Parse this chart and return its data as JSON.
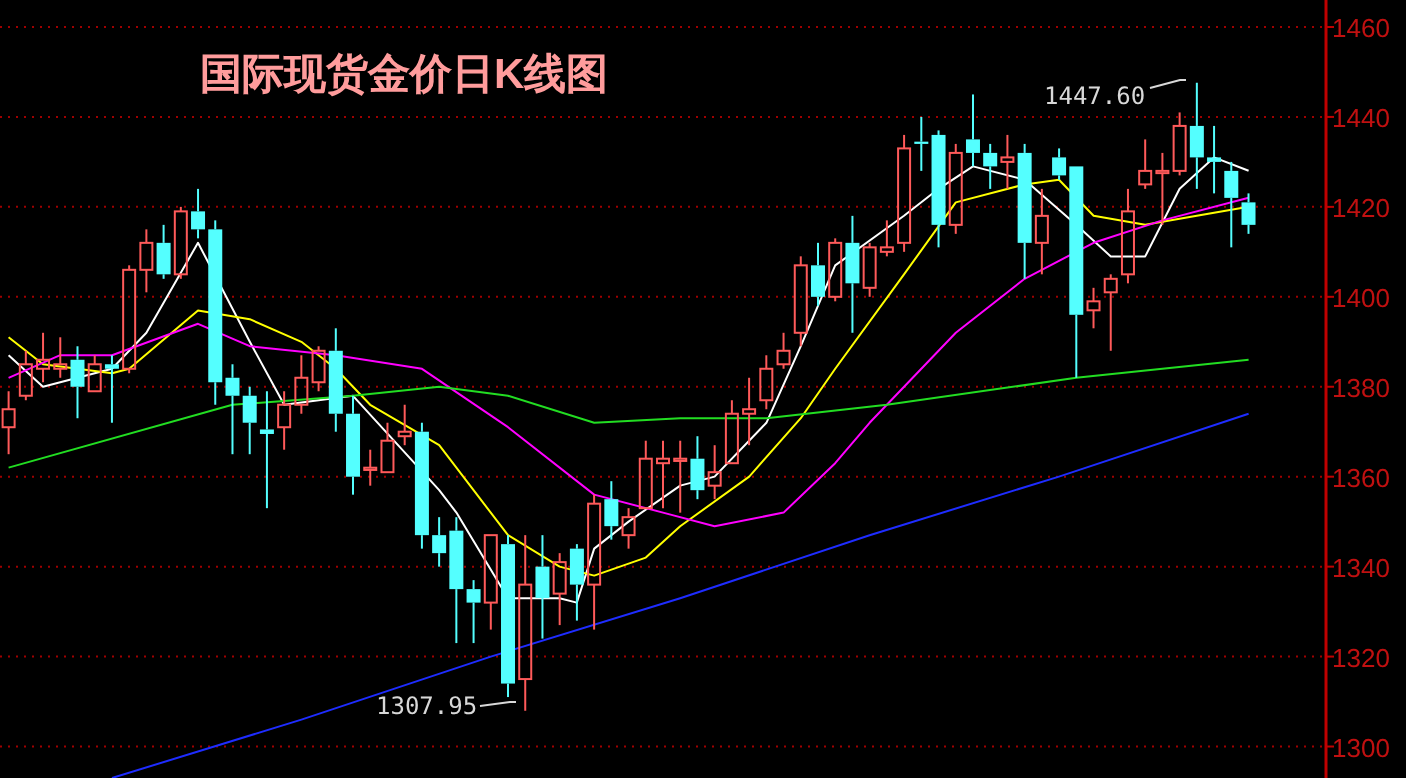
{
  "chart_data": {
    "type": "candlestick",
    "title": "国际现货金价日K线图",
    "categories": [
      null,
      null,
      null,
      null,
      null,
      null,
      null,
      null,
      null,
      null,
      null,
      null,
      null,
      null,
      null,
      null,
      null,
      null,
      null,
      null,
      null,
      null,
      null,
      null,
      null,
      null,
      null,
      null,
      null,
      null,
      null,
      null,
      null,
      null,
      null,
      null,
      null,
      null,
      null,
      null,
      null,
      null,
      null,
      null,
      null,
      null,
      null,
      null,
      null,
      null,
      null,
      null,
      null,
      null,
      null,
      null,
      null,
      null,
      null,
      null,
      null,
      null,
      null,
      null,
      null,
      null,
      null,
      null,
      null,
      null,
      null,
      null,
      null,
      null,
      null,
      null,
      null
    ],
    "ohlc": [
      [
        1371,
        1379,
        1365,
        1375
      ],
      [
        1378,
        1388,
        1377,
        1385
      ],
      [
        1384,
        1392,
        1381,
        1386
      ],
      [
        1384,
        1391,
        1382,
        1385
      ],
      [
        1386,
        1389,
        1373,
        1380
      ],
      [
        1379,
        1387,
        1379,
        1385
      ],
      [
        1385,
        1387,
        1372,
        1384
      ],
      [
        1384,
        1407,
        1383,
        1406
      ],
      [
        1406,
        1415,
        1401,
        1412
      ],
      [
        1412,
        1416,
        1404,
        1405
      ],
      [
        1405,
        1420,
        1404,
        1419
      ],
      [
        1419,
        1424,
        1413,
        1415
      ],
      [
        1415,
        1417,
        1376,
        1381
      ],
      [
        1382,
        1385,
        1365,
        1378
      ],
      [
        1378,
        1380,
        1365,
        1372
      ],
      [
        1370.5,
        1379,
        1353,
        1369.5
      ],
      [
        1371,
        1379,
        1366,
        1376
      ],
      [
        1376,
        1387,
        1374,
        1382
      ],
      [
        1381,
        1389,
        1379,
        1388
      ],
      [
        1388,
        1393,
        1370,
        1374
      ],
      [
        1374,
        1378,
        1356,
        1360
      ],
      [
        1361.5,
        1366,
        1358,
        1362
      ],
      [
        1361,
        1372,
        1361,
        1368
      ],
      [
        1369,
        1376,
        1367,
        1370
      ],
      [
        1370,
        1372,
        1344,
        1347
      ],
      [
        1347,
        1351,
        1340,
        1343
      ],
      [
        1348,
        1351,
        1323,
        1335
      ],
      [
        1335,
        1337,
        1323,
        1332
      ],
      [
        1332,
        1347,
        1326,
        1347
      ],
      [
        1345,
        1347,
        1311,
        1314
      ],
      [
        1315,
        1347,
        1307.95,
        1336
      ],
      [
        1340,
        1347,
        1324,
        1333
      ],
      [
        1334,
        1343,
        1327,
        1341
      ],
      [
        1344,
        1345,
        1328,
        1336
      ],
      [
        1336,
        1356,
        1326,
        1354
      ],
      [
        1355,
        1359,
        1346,
        1349
      ],
      [
        1347,
        1353,
        1344,
        1351
      ],
      [
        1353,
        1368,
        1353,
        1364
      ],
      [
        1363,
        1368,
        1353,
        1364
      ],
      [
        1363.5,
        1368,
        1352,
        1364
      ],
      [
        1364,
        1369,
        1355,
        1357
      ],
      [
        1358,
        1367,
        1355,
        1361
      ],
      [
        1363,
        1377,
        1363,
        1374
      ],
      [
        1374,
        1382,
        1367,
        1375
      ],
      [
        1377,
        1387,
        1375,
        1384
      ],
      [
        1385,
        1392,
        1384,
        1388
      ],
      [
        1392,
        1409,
        1389,
        1407
      ],
      [
        1407,
        1412,
        1398,
        1400
      ],
      [
        1400,
        1413,
        1399,
        1412
      ],
      [
        1412,
        1418,
        1392,
        1403
      ],
      [
        1402,
        1412,
        1400,
        1411
      ],
      [
        1410,
        1417,
        1409,
        1411
      ],
      [
        1412,
        1436,
        1410,
        1433
      ],
      [
        1434.5,
        1440,
        1428,
        1434
      ],
      [
        1436,
        1437,
        1411,
        1416
      ],
      [
        1416,
        1434,
        1414,
        1432
      ],
      [
        1435,
        1445,
        1429,
        1432
      ],
      [
        1432,
        1434,
        1424,
        1429
      ],
      [
        1430,
        1436,
        1424,
        1431
      ],
      [
        1432,
        1434,
        1404,
        1412
      ],
      [
        1412,
        1424,
        1405,
        1418
      ],
      [
        1431,
        1433,
        1426,
        1427
      ],
      [
        1429,
        1429,
        1382,
        1396
      ],
      [
        1397,
        1402,
        1393,
        1399
      ],
      [
        1401,
        1405,
        1388,
        1404
      ],
      [
        1405,
        1424,
        1403,
        1419
      ],
      [
        1425,
        1435,
        1424,
        1428
      ],
      [
        1427.5,
        1432,
        1416,
        1428
      ],
      [
        1428,
        1441,
        1427,
        1438
      ],
      [
        1438,
        1447.6,
        1424,
        1431
      ],
      [
        1431,
        1438,
        1423,
        1430
      ],
      [
        1428,
        1430,
        1411,
        1422
      ],
      [
        1421,
        1423,
        1414,
        1416
      ],
      null,
      null,
      null,
      null
    ],
    "series": [
      {
        "type": "line",
        "color": "#ffffff",
        "values": [
          1387,
          null,
          1380,
          null,
          null,
          null,
          1384,
          null,
          1392,
          null,
          null,
          1412,
          null,
          null,
          1390,
          null,
          1376,
          null,
          1377,
          null,
          1378,
          null,
          null,
          null,
          null,
          1357,
          1352,
          null,
          null,
          1333,
          null,
          null,
          1333,
          1332,
          1344,
          null,
          1350,
          null,
          null,
          1358,
          null,
          1360,
          null,
          null,
          1372,
          null,
          1389,
          null,
          1407,
          null,
          null,
          null,
          1418,
          null,
          1424,
          null,
          1429,
          null,
          null,
          1426,
          null,
          null,
          1416,
          null,
          1409,
          null,
          1409,
          null,
          1424,
          null,
          1431,
          null,
          1428,
          null,
          null,
          null,
          null
        ]
      },
      {
        "type": "line",
        "color": "#ffff00",
        "values": [
          1391,
          null,
          1385,
          null,
          null,
          null,
          1383,
          1384,
          null,
          null,
          null,
          1397,
          null,
          null,
          1395,
          null,
          null,
          1390,
          null,
          1384,
          null,
          1376,
          null,
          null,
          null,
          1367,
          null,
          null,
          null,
          1347,
          null,
          null,
          1340,
          null,
          1338,
          null,
          null,
          1342,
          null,
          1349,
          null,
          null,
          null,
          1360,
          null,
          null,
          1373,
          null,
          1384,
          null,
          null,
          null,
          1405,
          null,
          null,
          1421,
          null,
          null,
          null,
          1425,
          null,
          1426,
          null,
          1418,
          null,
          null,
          1416,
          null,
          null,
          1418,
          null,
          null,
          1420,
          null,
          null,
          null,
          null
        ]
      },
      {
        "type": "line",
        "color": "#ff00ff",
        "values": [
          1382,
          null,
          null,
          1387,
          null,
          null,
          1387,
          null,
          null,
          null,
          null,
          1394,
          null,
          null,
          1389,
          null,
          null,
          null,
          null,
          1387,
          null,
          null,
          null,
          null,
          1384,
          null,
          null,
          null,
          null,
          1371,
          null,
          null,
          null,
          null,
          1356,
          null,
          null,
          null,
          1352,
          null,
          null,
          1349,
          null,
          null,
          null,
          1352,
          null,
          null,
          1363,
          null,
          1372,
          null,
          null,
          null,
          null,
          1392,
          null,
          null,
          null,
          1404,
          null,
          null,
          null,
          1412,
          null,
          null,
          null,
          1417,
          null,
          null,
          null,
          null,
          1422,
          null,
          null,
          null,
          null
        ]
      },
      {
        "type": "line",
        "color": "#22dd22",
        "values": [
          1362,
          null,
          null,
          null,
          null,
          null,
          null,
          null,
          null,
          null,
          null,
          null,
          null,
          1376,
          null,
          null,
          null,
          null,
          null,
          null,
          1378,
          null,
          null,
          null,
          null,
          1380,
          null,
          null,
          null,
          1378,
          null,
          null,
          null,
          null,
          1372,
          null,
          null,
          null,
          null,
          1373,
          null,
          null,
          null,
          null,
          1373,
          null,
          null,
          null,
          null,
          null,
          null,
          1376,
          null,
          null,
          null,
          null,
          null,
          null,
          null,
          null,
          null,
          null,
          1382,
          null,
          null,
          null,
          null,
          null,
          null,
          null,
          null,
          null,
          1386,
          null,
          null,
          null,
          null
        ]
      },
      {
        "type": "line",
        "color": "#1e2cff",
        "values": [
          null,
          null,
          null,
          null,
          null,
          null,
          1293,
          null,
          null,
          null,
          null,
          null,
          null,
          null,
          null,
          null,
          null,
          1306,
          null,
          null,
          null,
          null,
          null,
          null,
          null,
          null,
          null,
          null,
          1320,
          null,
          null,
          null,
          null,
          null,
          null,
          null,
          null,
          null,
          null,
          1333,
          null,
          null,
          null,
          null,
          null,
          null,
          null,
          null,
          null,
          null,
          1347,
          null,
          null,
          null,
          null,
          null,
          null,
          null,
          null,
          null,
          null,
          1360,
          null,
          null,
          null,
          null,
          null,
          null,
          null,
          null,
          null,
          null,
          1374,
          null,
          null,
          null,
          null
        ]
      }
    ],
    "ylim": [
      1293,
      1466
    ],
    "yticks": [
      1300,
      1320,
      1340,
      1360,
      1380,
      1400,
      1420,
      1440,
      1460
    ],
    "grid": "y",
    "tick_labels": "y",
    "annotations": [
      "1447.60",
      "1307.95"
    ]
  }
}
